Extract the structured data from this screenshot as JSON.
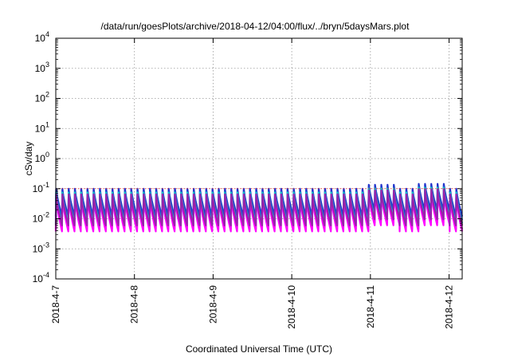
{
  "chart_data": {
    "type": "line",
    "title": "/data/run/goesPlots/archive/2018-04-12/04:00/flux/../bryn/5daysMars.plot",
    "xlabel": "Coordinated Universal Time (UTC)",
    "ylabel": "cSv/day",
    "yscale": "log",
    "ylim": [
      0.0001,
      10000
    ],
    "xlim": [
      "2018-04-07",
      "2018-04-12 04:00"
    ],
    "y_ticks": [
      {
        "value": 0.0001,
        "base": "10",
        "exp": "-4"
      },
      {
        "value": 0.001,
        "base": "10",
        "exp": "-3"
      },
      {
        "value": 0.01,
        "base": "10",
        "exp": "-2"
      },
      {
        "value": 0.1,
        "base": "10",
        "exp": "-1"
      },
      {
        "value": 1,
        "base": "10",
        "exp": "0"
      },
      {
        "value": 10,
        "base": "10",
        "exp": "1"
      },
      {
        "value": 100,
        "base": "10",
        "exp": "2"
      },
      {
        "value": 1000,
        "base": "10",
        "exp": "3"
      },
      {
        "value": 10000,
        "base": "10",
        "exp": "4"
      }
    ],
    "x_ticks": [
      {
        "value": "2018-04-07",
        "label": "2018-4-7"
      },
      {
        "value": "2018-04-08",
        "label": "2018-4-8"
      },
      {
        "value": "2018-04-09",
        "label": "2018-4-9"
      },
      {
        "value": "2018-04-10",
        "label": "2018-4-10"
      },
      {
        "value": "2018-04-11",
        "label": "2018-4-11"
      },
      {
        "value": "2018-04-12",
        "label": "2018-4-12"
      }
    ],
    "grid": true,
    "reference_lines": [
      {
        "y": 0.1,
        "color": "#ff3333"
      }
    ],
    "sawtooth_cycles_per_day": 12.5,
    "series": [
      {
        "color": "#cc00cc",
        "peak": 0.055,
        "trough": 0.0045
      },
      {
        "color": "#ff00ff",
        "peak": 0.05,
        "trough": 0.0038
      },
      {
        "color": "#3366ff",
        "peak": 0.09,
        "trough": 0.009
      },
      {
        "color": "#2233cc",
        "peak": 0.1,
        "trough": 0.012
      },
      {
        "color": "#00c8c8",
        "peak": 0.075,
        "trough": 0.007
      },
      {
        "color": "#9922aa",
        "peak": 0.065,
        "trough": 0.006
      }
    ]
  }
}
